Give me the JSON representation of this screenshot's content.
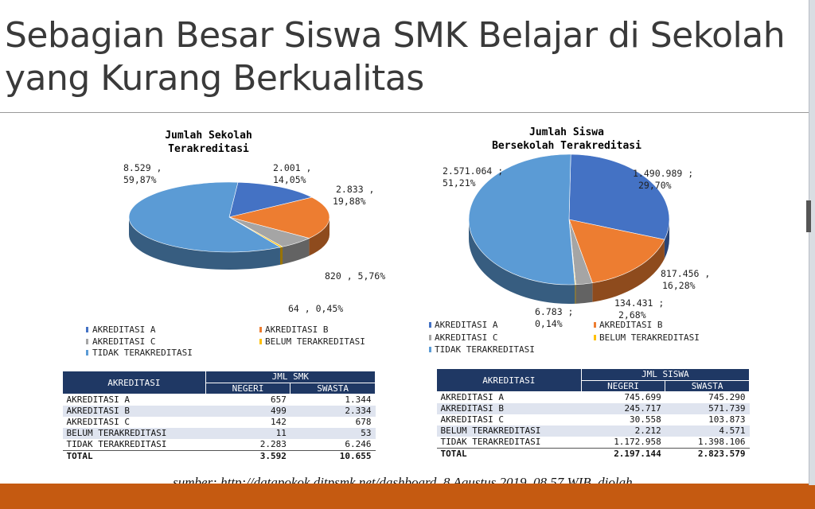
{
  "slide": {
    "title": "Sebagian Besar Siswa SMK Belajar di Sekolah yang Kurang Berkualitas",
    "source": "sumber: http://datapokok.ditpsmk.net/dashboard, 8 Agustus 2019, 08.57 WIB, diolah."
  },
  "colors": {
    "akreditasi_a": "#4472c4",
    "akreditasi_b": "#ed7d31",
    "akreditasi_c": "#a5a5a5",
    "belum_terakreditasi": "#ffc000",
    "tidak_terakreditasi": "#5b9bd5",
    "table_header": "#1f3864",
    "footer": "#c55a11"
  },
  "chart_data": [
    {
      "type": "pie",
      "style": "3d",
      "title_lines": [
        "Jumlah Sekolah",
        "Terakreditasi"
      ],
      "categories": [
        "AKREDITASI A",
        "AKREDITASI B",
        "AKREDITASI C",
        "BELUM TERAKREDITASI",
        "TIDAK TERAKREDITASI"
      ],
      "values": [
        2001,
        2833,
        820,
        64,
        8529
      ],
      "percents": [
        14.05,
        19.88,
        5.76,
        0.45,
        59.87
      ],
      "data_labels": [
        [
          "2.001 ,",
          "14,05%"
        ],
        [
          "2.833 ,",
          "19,88%"
        ],
        [
          "820 , 5,76%"
        ],
        [
          "64 , 0,45%"
        ],
        [
          "8.529 ,",
          "59,87%"
        ]
      ],
      "legend": [
        "AKREDITASI A",
        "AKREDITASI B",
        "AKREDITASI C",
        "BELUM TERAKREDITASI",
        "TIDAK TERAKREDITASI"
      ],
      "legend_position": "bottom"
    },
    {
      "type": "pie",
      "style": "3d",
      "title_lines": [
        "Jumlah Siswa",
        "Bersekolah Terakreditasi"
      ],
      "categories": [
        "AKREDITASI A",
        "AKREDITASI B",
        "AKREDITASI C",
        "BELUM TERAKREDITASI",
        "TIDAK TERAKREDITASI"
      ],
      "values": [
        1490989,
        817456,
        134431,
        6783,
        2571064
      ],
      "percents": [
        29.7,
        16.28,
        2.68,
        0.14,
        51.21
      ],
      "data_labels": [
        [
          "1.490.989 ;",
          "29,70%"
        ],
        [
          "817.456 ,",
          "16,28%"
        ],
        [
          "134.431 ;",
          "2,68%"
        ],
        [
          "6.783 ;",
          "0,14%"
        ],
        [
          "2.571.064 ;",
          "51,21%"
        ]
      ],
      "legend": [
        "AKREDITASI A",
        "AKREDITASI B",
        "AKREDITASI C",
        "BELUM TERAKREDITASI",
        "TIDAK TERAKREDITASI"
      ],
      "legend_position": "bottom"
    },
    {
      "type": "table",
      "header": {
        "col1": "AKREDITASI",
        "group": "JML SMK",
        "sub1": "NEGERI",
        "sub2": "SWASTA"
      },
      "rows": [
        [
          "AKREDITASI A",
          "657",
          "1.344"
        ],
        [
          "AKREDITASI B",
          "499",
          "2.334"
        ],
        [
          "AKREDITASI C",
          "142",
          "678"
        ],
        [
          "BELUM TERAKREDITASI",
          "11",
          "53"
        ],
        [
          "TIDAK TERAKREDITASI",
          "2.283",
          "6.246"
        ],
        [
          "TOTAL",
          "3.592",
          "10.655"
        ]
      ]
    },
    {
      "type": "table",
      "header": {
        "col1": "AKREDITASI",
        "group": "JML SISWA",
        "sub1": "NEGERI",
        "sub2": "SWASTA"
      },
      "rows": [
        [
          "AKREDITASI A",
          "745.699",
          "745.290"
        ],
        [
          "AKREDITASI B",
          "245.717",
          "571.739"
        ],
        [
          "AKREDITASI C",
          "30.558",
          "103.873"
        ],
        [
          "BELUM TERAKREDITASI",
          "2.212",
          "4.571"
        ],
        [
          "TIDAK TERAKREDITASI",
          "1.172.958",
          "1.398.106"
        ],
        [
          "TOTAL",
          "2.197.144",
          "2.823.579"
        ]
      ]
    }
  ]
}
